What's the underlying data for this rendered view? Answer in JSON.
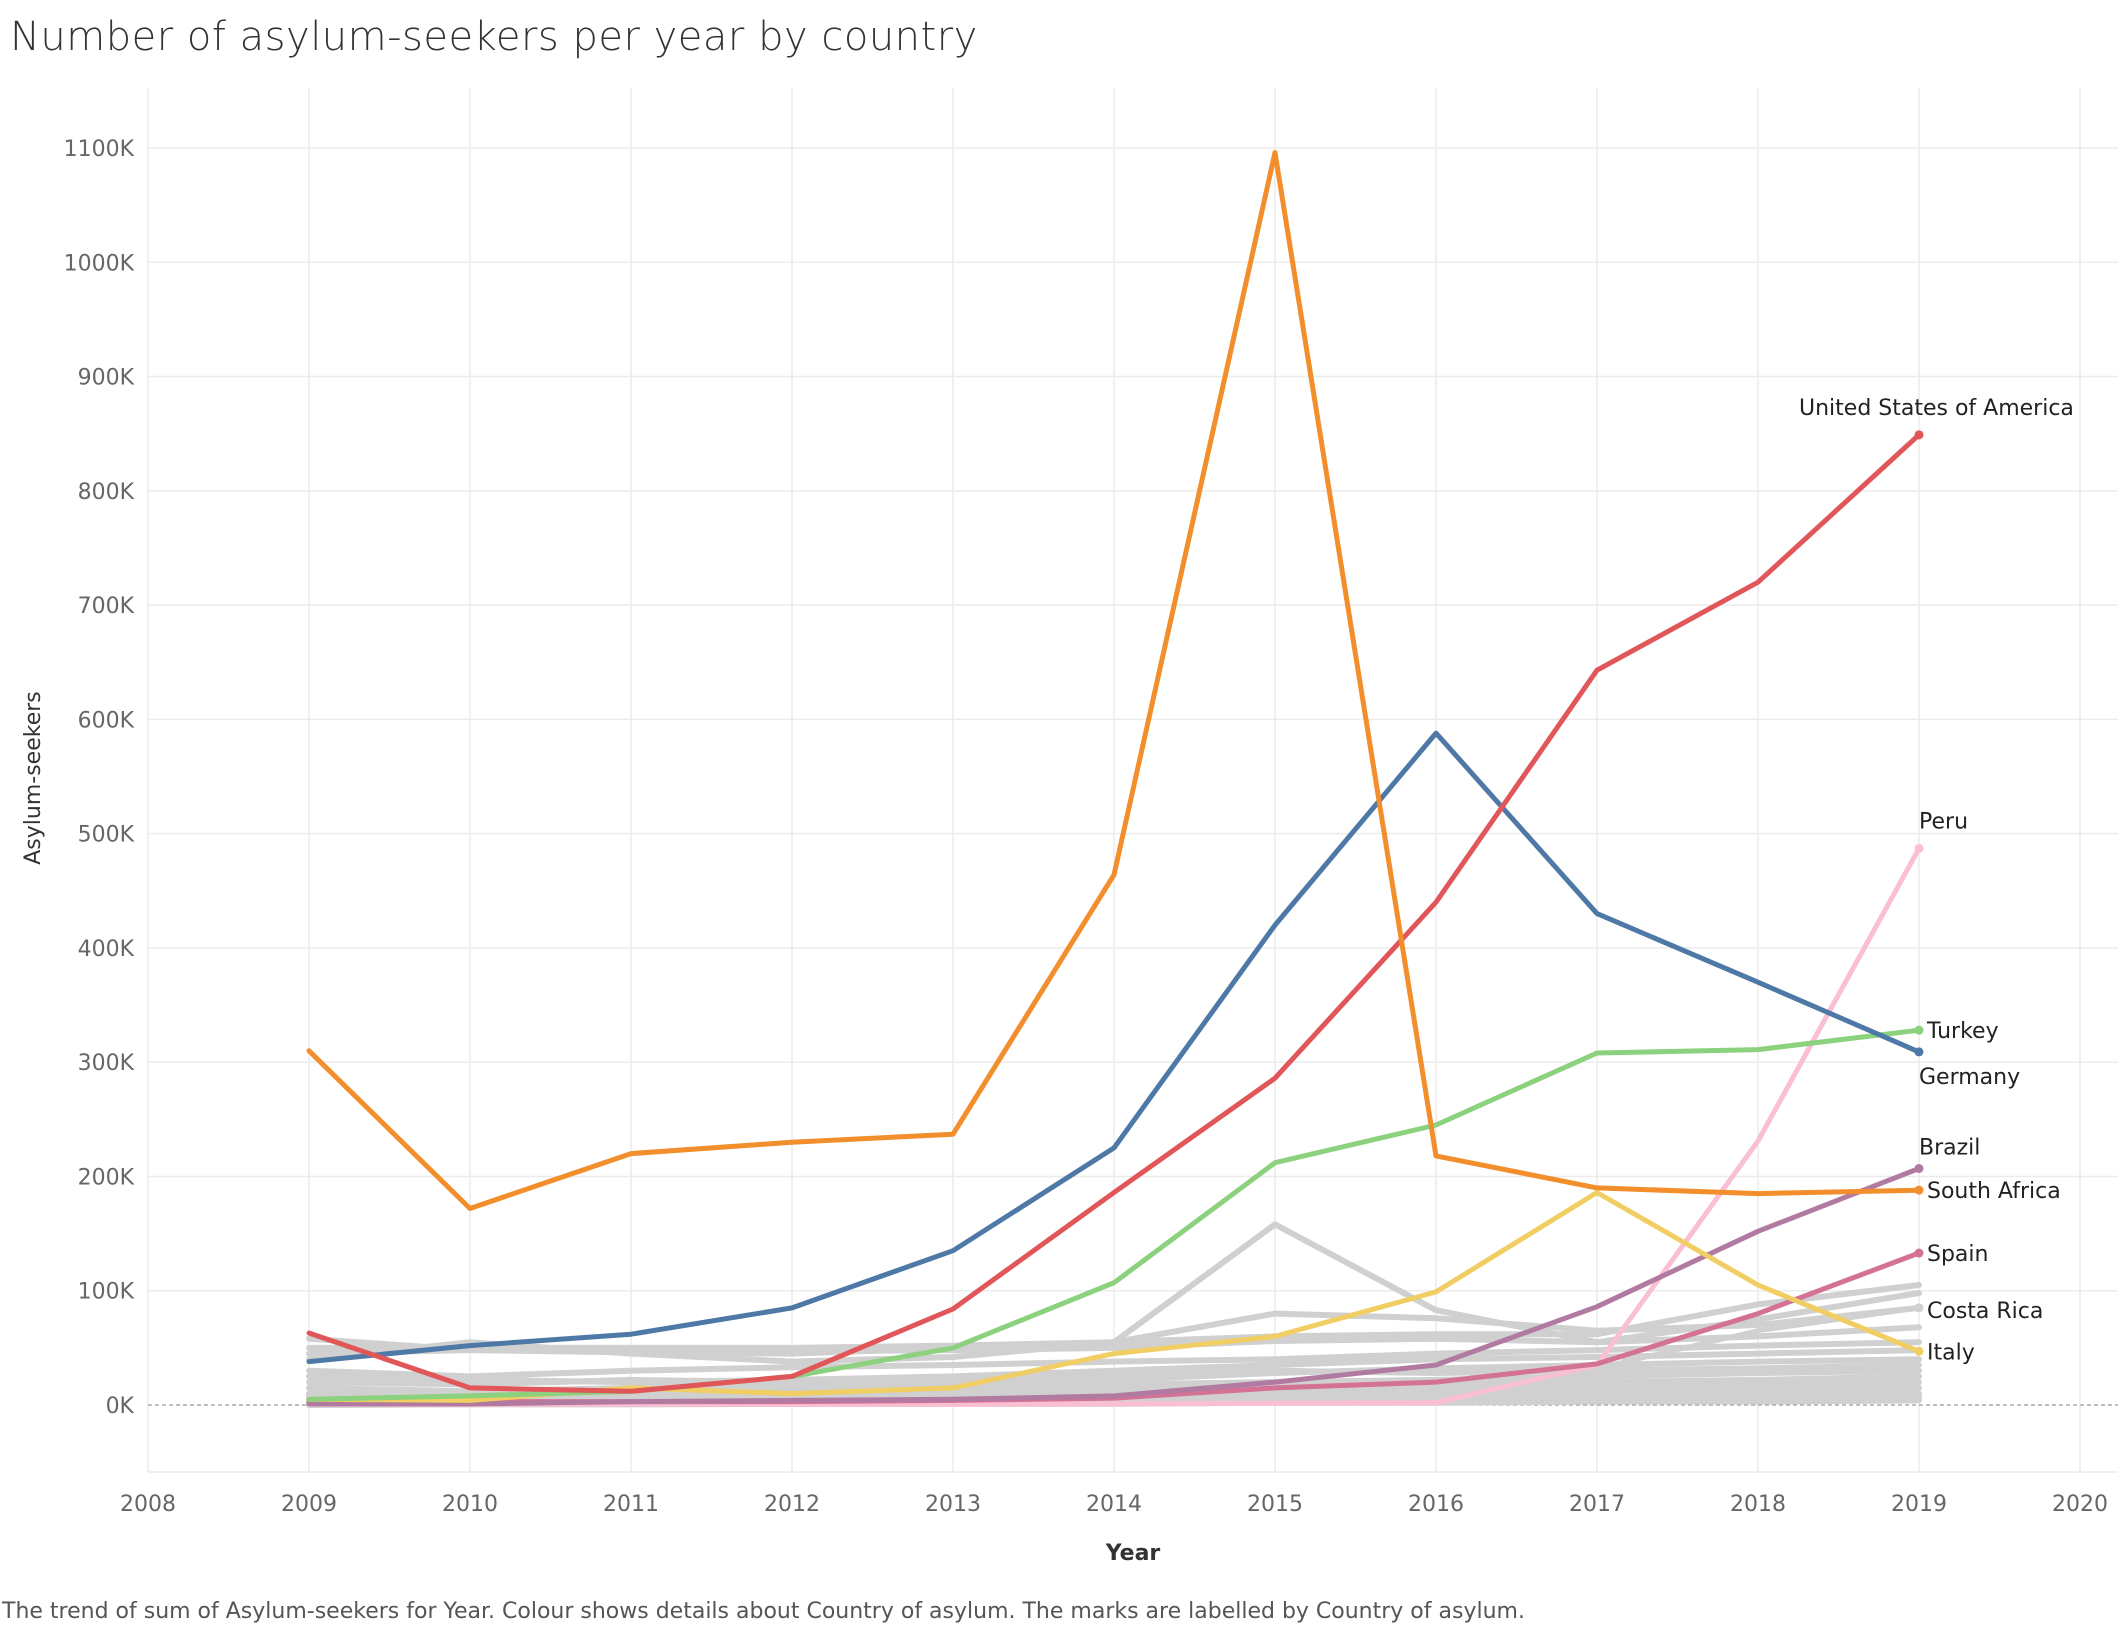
{
  "chart_data": {
    "type": "line",
    "title": "Number of asylum-seekers per year by country",
    "caption": "The trend of sum of Asylum-seekers for Year.  Colour shows details about Country of asylum.  The marks are labelled by Country of asylum.",
    "xlabel": "Year",
    "ylabel": "Asylum-seekers",
    "xlim": [
      2008,
      2020
    ],
    "ylim": [
      -60000,
      1160000
    ],
    "x_ticks": [
      "2008",
      "2009",
      "2010",
      "2011",
      "2012",
      "2013",
      "2014",
      "2015",
      "2016",
      "2017",
      "2018",
      "2019",
      "2020"
    ],
    "y_ticks": [
      {
        "value": 0,
        "label": "0K"
      },
      {
        "value": 100000,
        "label": "100K"
      },
      {
        "value": 200000,
        "label": "200K"
      },
      {
        "value": 300000,
        "label": "300K"
      },
      {
        "value": 400000,
        "label": "400K"
      },
      {
        "value": 500000,
        "label": "500K"
      },
      {
        "value": 600000,
        "label": "600K"
      },
      {
        "value": 700000,
        "label": "700K"
      },
      {
        "value": 800000,
        "label": "800K"
      },
      {
        "value": 900000,
        "label": "900K"
      },
      {
        "value": 1000000,
        "label": "1000K"
      },
      {
        "value": 1100000,
        "label": "1100K"
      }
    ],
    "grid": true,
    "x": [
      2009,
      2010,
      2011,
      2012,
      2013,
      2014,
      2015,
      2016,
      2017,
      2018,
      2019
    ],
    "background_series": [
      {
        "color": "#d0d0d0",
        "values": [
          58000,
          48000,
          46000,
          45000,
          50000,
          55000,
          60000,
          62000,
          62000,
          88000,
          105000
        ]
      },
      {
        "color": "#d0d0d0",
        "values": [
          50000,
          50000,
          50000,
          50000,
          52000,
          55000,
          80000,
          76000,
          65000,
          70000,
          85000
        ]
      },
      {
        "color": "#d0d0d0",
        "values": [
          40000,
          55000,
          45000,
          38000,
          42000,
          55000,
          158000,
          83000,
          55000,
          75000,
          98000
        ]
      },
      {
        "color": "#d0d0d0",
        "values": [
          45000,
          48000,
          48000,
          47000,
          48000,
          50000,
          56000,
          58000,
          55000,
          60000,
          68000
        ]
      },
      {
        "color": "#d0d0d0",
        "values": [
          30000,
          25000,
          30000,
          33000,
          35000,
          38000,
          40000,
          45000,
          48000,
          52000,
          55000
        ]
      },
      {
        "color": "#d0d0d0",
        "values": [
          25000,
          22000,
          20000,
          22000,
          25000,
          30000,
          35000,
          40000,
          42000,
          45000,
          48000
        ]
      },
      {
        "color": "#d0d0d0",
        "values": [
          20000,
          18000,
          22000,
          20000,
          18000,
          22000,
          28000,
          32000,
          35000,
          38000,
          40000
        ]
      },
      {
        "color": "#d0d0d0",
        "values": [
          15000,
          12000,
          15000,
          18000,
          20000,
          25000,
          30000,
          28000,
          30000,
          32000,
          35000
        ]
      },
      {
        "color": "#d0d0d0",
        "values": [
          10000,
          10000,
          12000,
          14000,
          15000,
          18000,
          20000,
          22000,
          25000,
          28000,
          30000
        ]
      },
      {
        "color": "#d0d0d0",
        "values": [
          8000,
          9000,
          10000,
          10000,
          12000,
          14000,
          16000,
          18000,
          20000,
          22000,
          25000
        ]
      },
      {
        "color": "#d0d0d0",
        "values": [
          5000,
          6000,
          7000,
          8000,
          9000,
          10000,
          12000,
          14000,
          16000,
          18000,
          20000
        ]
      },
      {
        "color": "#d0d0d0",
        "values": [
          3000,
          3000,
          4000,
          4000,
          5000,
          6000,
          8000,
          10000,
          12000,
          14000,
          15000
        ]
      },
      {
        "color": "#d0d0d0",
        "values": [
          2000,
          2000,
          2000,
          3000,
          3000,
          4000,
          5000,
          6000,
          8000,
          9000,
          10000
        ]
      },
      {
        "color": "#d0d0d0",
        "values": [
          1000,
          1000,
          1000,
          1000,
          2000,
          2000,
          3000,
          4000,
          5000,
          6000,
          7000
        ]
      },
      {
        "color": "#d0d0d0",
        "values": [
          0,
          500,
          500,
          1000,
          1000,
          1000,
          2000,
          2000,
          3000,
          3000,
          4000
        ]
      }
    ],
    "series": [
      {
        "name": "Germany",
        "color": "#4e79a7",
        "values": [
          38000,
          52000,
          62000,
          85000,
          135000,
          225000,
          420000,
          588000,
          430000,
          370000,
          309000
        ]
      },
      {
        "name": "United States of America",
        "color": "#e15759",
        "values": [
          63000,
          15000,
          12000,
          25000,
          84000,
          186000,
          286000,
          440000,
          643000,
          720000,
          849000
        ]
      },
      {
        "name": "Turkey",
        "color": "#8cd17d",
        "values": [
          5000,
          8000,
          12000,
          25000,
          50000,
          107000,
          212000,
          245000,
          308000,
          311000,
          328000
        ]
      },
      {
        "name": "South Africa",
        "color": "#f28e2b",
        "values": [
          310000,
          172000,
          220000,
          230000,
          237000,
          464000,
          1096000,
          218000,
          190000,
          185000,
          188000
        ]
      },
      {
        "name": "Italy",
        "color": "#f1ce63",
        "values": [
          5000,
          4000,
          15000,
          10000,
          15000,
          45000,
          60000,
          99000,
          186000,
          105000,
          47000
        ]
      },
      {
        "name": "Brazil",
        "color": "#b07aa1",
        "values": [
          1000,
          1000,
          3000,
          4000,
          5000,
          8000,
          20000,
          35000,
          86000,
          152000,
          207000
        ]
      },
      {
        "name": "Spain",
        "color": "#d37295",
        "values": [
          3000,
          3000,
          3000,
          3000,
          4000,
          6000,
          15000,
          20000,
          36000,
          80000,
          133000
        ]
      },
      {
        "name": "Peru",
        "color": "#fabfd2",
        "values": [
          500,
          500,
          500,
          500,
          500,
          1000,
          1500,
          2000,
          35000,
          231000,
          487000
        ]
      },
      {
        "name": "Costa Rica",
        "color": "#d0d0d0",
        "values": [
          2000,
          2000,
          2000,
          2000,
          2000,
          3000,
          3000,
          4000,
          32000,
          65000,
          85000
        ]
      }
    ],
    "end_labels": [
      {
        "name": "United States of America",
        "value": 849000
      },
      {
        "name": "Peru",
        "value": 487000
      },
      {
        "name": "Turkey",
        "value": 328000
      },
      {
        "name": "Germany",
        "value": 309000
      },
      {
        "name": "Brazil",
        "value": 207000
      },
      {
        "name": "South Africa",
        "value": 188000
      },
      {
        "name": "Spain",
        "value": 133000
      },
      {
        "name": "Costa Rica",
        "value": 85000
      },
      {
        "name": "Italy",
        "value": 47000
      }
    ]
  }
}
